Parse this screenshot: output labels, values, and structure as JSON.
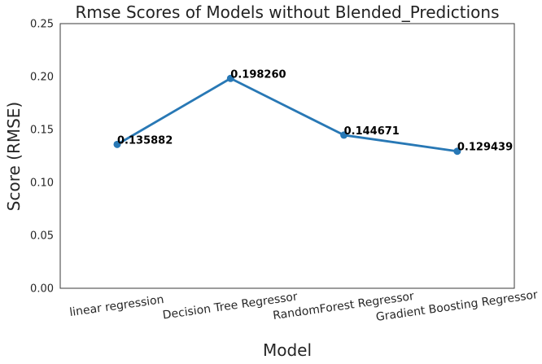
{
  "chart_data": {
    "type": "line",
    "title": "Rmse Scores of Models without Blended_Predictions",
    "xlabel": "Model",
    "ylabel": "Score (RMSE)",
    "ylim": [
      0,
      0.25
    ],
    "yticks": [
      "0.00",
      "0.05",
      "0.10",
      "0.15",
      "0.20",
      "0.25"
    ],
    "categories": [
      "linear regression",
      "Decision Tree Regressor",
      "RandomForest Regressor",
      "Gradient Boosting Regressor"
    ],
    "values": [
      0.135882,
      0.19826,
      0.144671,
      0.129439
    ],
    "data_labels": [
      "0.135882",
      "0.198260",
      "0.144671",
      "0.129439"
    ],
    "grid": false,
    "line_color": "#2878b5",
    "marker_color": "#2878b5"
  }
}
